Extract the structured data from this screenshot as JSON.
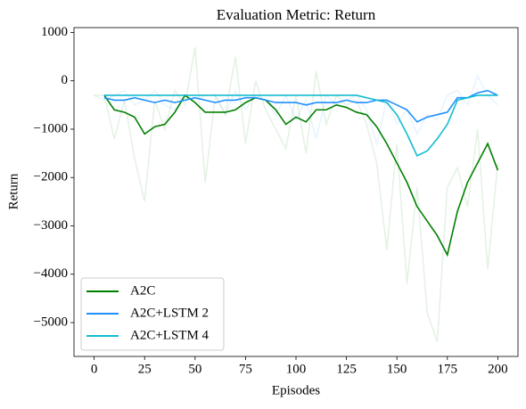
{
  "chart_data": {
    "type": "line",
    "title": "Evaluation Metric: Return",
    "x_label": "Episodes",
    "y_label": "Return",
    "x": [
      0,
      5,
      10,
      15,
      20,
      25,
      30,
      35,
      40,
      45,
      50,
      55,
      60,
      65,
      70,
      75,
      80,
      85,
      90,
      95,
      100,
      105,
      110,
      115,
      120,
      125,
      130,
      135,
      140,
      145,
      150,
      155,
      160,
      165,
      170,
      175,
      180,
      185,
      190,
      195,
      200
    ],
    "series": [
      {
        "color": "#008000",
        "opacity": 0.1,
        "values": [
          -300,
          -300,
          -1200,
          -400,
          -1600,
          -2500,
          -400,
          -1000,
          -200,
          -500,
          700,
          -2100,
          -300,
          -700,
          500,
          -1300,
          0,
          -600,
          -1000,
          -1400,
          -300,
          -1500,
          200,
          -900,
          -300,
          -500,
          -400,
          -900,
          -1700,
          -3500,
          -1300,
          -4200,
          -2200,
          -4800,
          -5400,
          -2200,
          -1800,
          -2600,
          -1000,
          -3900,
          -1700
        ]
      },
      {
        "color": "#1e90ff",
        "opacity": 0.1,
        "values": [
          -300,
          -400,
          -300,
          -200,
          -500,
          -400,
          -200,
          -500,
          -600,
          -300,
          -400,
          -300,
          -300,
          -700,
          -200,
          -600,
          -300,
          -400,
          -700,
          -300,
          -800,
          -400,
          -1200,
          -300,
          -500,
          -400,
          -300,
          -600,
          -1300,
          -400,
          -900,
          -600,
          -1100,
          -700,
          -800,
          -300,
          -200,
          -500,
          100,
          -300,
          -500
        ]
      },
      {
        "name": "A2C",
        "color": "#008000",
        "values": [
          null,
          -300,
          -600,
          -650,
          -750,
          -1100,
          -950,
          -900,
          -650,
          -300,
          -450,
          -650,
          -650,
          -650,
          -600,
          -450,
          -350,
          -400,
          -600,
          -900,
          -750,
          -850,
          -600,
          -600,
          -500,
          -550,
          -650,
          -700,
          -950,
          -1300,
          -1700,
          -2100,
          -2600,
          -2900,
          -3200,
          -3600,
          -2700,
          -2100,
          -1700,
          -1300,
          -1850
        ]
      },
      {
        "name": "A2C+LSTM 2",
        "color": "#1e90ff",
        "values": [
          null,
          -350,
          -400,
          -400,
          -350,
          -400,
          -450,
          -400,
          -450,
          -400,
          -350,
          -400,
          -450,
          -400,
          -400,
          -350,
          -350,
          -400,
          -450,
          -450,
          -450,
          -500,
          -450,
          -450,
          -450,
          -400,
          -450,
          -450,
          -400,
          -400,
          -500,
          -600,
          -850,
          -750,
          -700,
          -650,
          -350,
          -350,
          -250,
          -200,
          -300
        ]
      },
      {
        "name": "A2C+LSTM 4",
        "color": "#12bcd0",
        "values": [
          null,
          -300,
          -300,
          -300,
          -300,
          -300,
          -300,
          -300,
          -300,
          -300,
          -300,
          -300,
          -300,
          -300,
          -300,
          -300,
          -300,
          -300,
          -300,
          -300,
          -300,
          -300,
          -300,
          -300,
          -300,
          -300,
          -300,
          -350,
          -400,
          -450,
          -700,
          -1100,
          -1550,
          -1450,
          -1200,
          -900,
          -400,
          -350,
          -300,
          -300,
          -300
        ]
      }
    ],
    "xlim": [
      -10,
      210
    ],
    "ylim": [
      -5700,
      1100
    ],
    "xticks": [
      0,
      25,
      50,
      75,
      100,
      125,
      150,
      175,
      200
    ],
    "yticks": [
      {
        "value": -5000,
        "label": "−5000"
      },
      {
        "value": -4000,
        "label": "−4000"
      },
      {
        "value": -3000,
        "label": "−3000"
      },
      {
        "value": -2000,
        "label": "−2000"
      },
      {
        "value": -1000,
        "label": "−1000"
      },
      0,
      1000
    ],
    "legend": "lower left",
    "grid": false
  }
}
